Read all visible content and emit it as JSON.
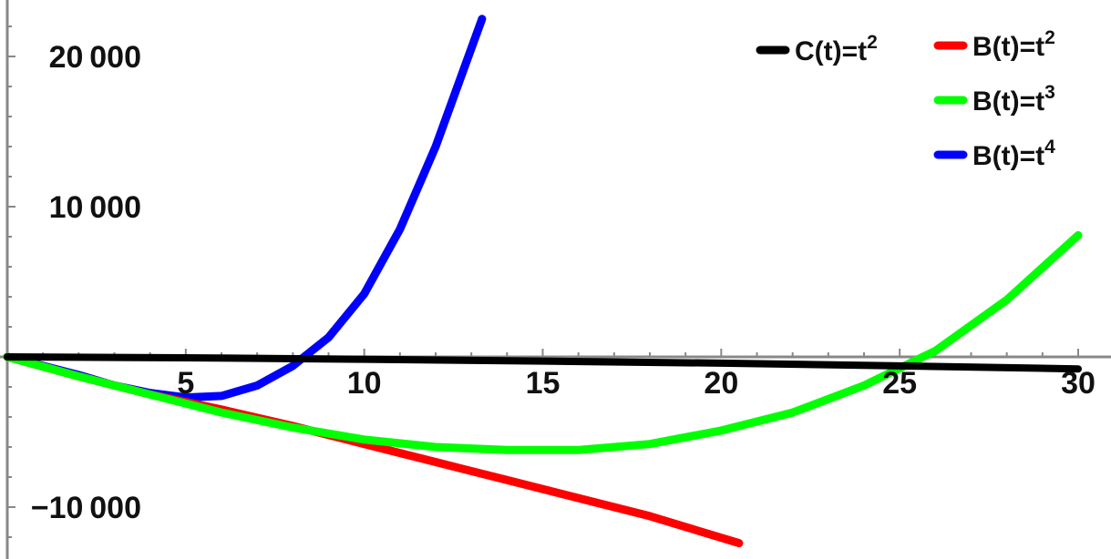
{
  "chart_data": {
    "type": "line",
    "title": "",
    "xlabel": "",
    "ylabel": "",
    "xlim": [
      0,
      30
    ],
    "ylim": [
      -13000,
      23000
    ],
    "grid": false,
    "legend_placement": "top-right",
    "x_ticks": [
      5,
      10,
      15,
      20,
      25,
      30
    ],
    "x_tick_labels": [
      "5",
      "10",
      "15",
      "20",
      "25",
      "30"
    ],
    "y_ticks": [
      -10000,
      10000,
      20000
    ],
    "y_tick_labels": [
      "−10 000",
      "10 000",
      "20 000"
    ],
    "series": [
      {
        "name": "C(t)=t2",
        "label_base": "C(t)=t",
        "label_sup": "2",
        "color": "#000000",
        "x": [
          0,
          5,
          10,
          15,
          20,
          25,
          30
        ],
        "y": [
          0,
          -60,
          -160,
          -280,
          -420,
          -600,
          -800
        ]
      },
      {
        "name": "B(t)=t2",
        "label_base": "B(t)=t",
        "label_sup": "2",
        "color": "#ff0000",
        "x": [
          0,
          2,
          4,
          6,
          8,
          10,
          12,
          14,
          16,
          18,
          20.5
        ],
        "y": [
          0,
          -1300,
          -2500,
          -3500,
          -4600,
          -5800,
          -7000,
          -8200,
          -9400,
          -10600,
          -12400
        ]
      },
      {
        "name": "B(t)=t3",
        "label_base": "B(t)=t",
        "label_sup": "3",
        "color": "#00ff00",
        "x": [
          0,
          2,
          4,
          6,
          8,
          10,
          12,
          14,
          16,
          18,
          20,
          22,
          24,
          26,
          28,
          30
        ],
        "y": [
          0,
          -1300,
          -2500,
          -3700,
          -4700,
          -5500,
          -6000,
          -6200,
          -6200,
          -5800,
          -4900,
          -3700,
          -1900,
          400,
          3800,
          8100
        ]
      },
      {
        "name": "B(t)=t4",
        "label_base": "B(t)=t",
        "label_sup": "4",
        "color": "#0000ff",
        "x": [
          0,
          1,
          2,
          3,
          4,
          5,
          6,
          7,
          8,
          9,
          10,
          11,
          12,
          13.3
        ],
        "y": [
          0,
          -600,
          -1200,
          -1900,
          -2400,
          -2700,
          -2600,
          -1900,
          -600,
          1300,
          4200,
          8500,
          14000,
          22500
        ]
      }
    ]
  },
  "legend": {
    "col1": [
      0
    ],
    "col2": [
      1,
      2,
      3
    ]
  }
}
